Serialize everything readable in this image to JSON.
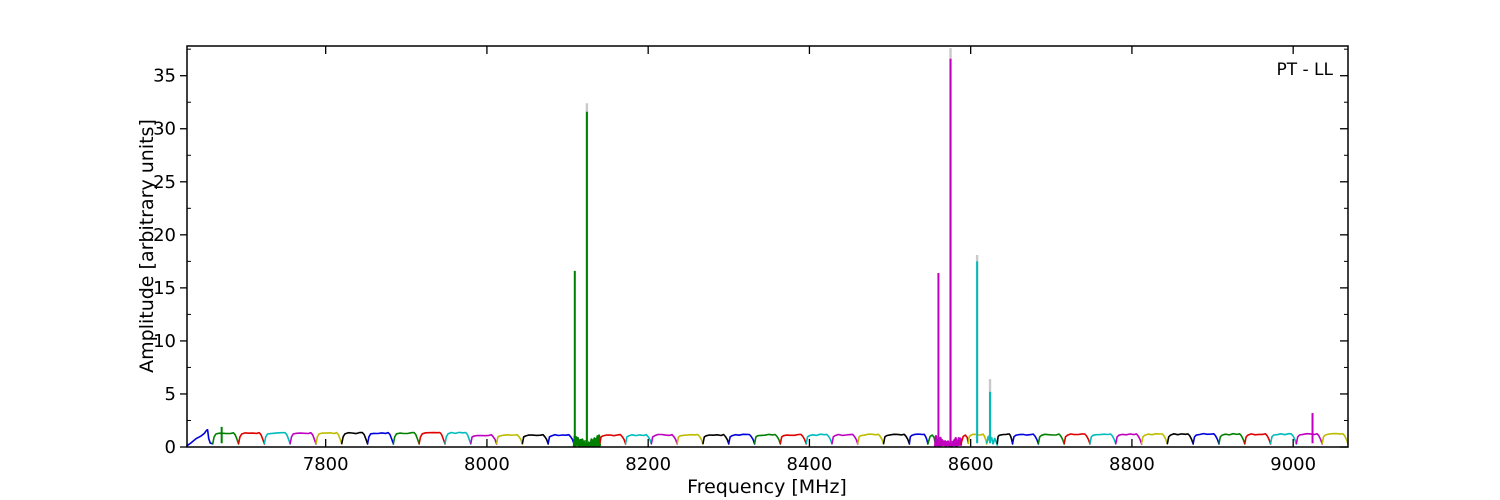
{
  "figure": {
    "annotation": "PT - LL",
    "xlabel": "Frequency [MHz]",
    "ylabel": "Amplitude [arbitrary units]"
  },
  "chart_data": {
    "type": "line",
    "title": "PT - LL",
    "xlabel": "Frequency [MHz]",
    "ylabel": "Amplitude [arbitrary units]",
    "xlim": [
      7628,
      9068
    ],
    "ylim": [
      0,
      37.8
    ],
    "x_ticks": [
      7800,
      8000,
      8200,
      8400,
      8600,
      8800,
      9000
    ],
    "y_ticks": [
      0,
      5,
      10,
      15,
      20,
      25,
      30,
      35
    ],
    "y_minor_ticks": [
      2.5,
      7.5,
      12.5,
      17.5,
      22.5,
      27.5,
      32.5,
      37.5
    ],
    "grid": false,
    "legend": "none",
    "description": "Autocorrelation bandpass spectrum: 45 contiguous ~32 MHz subbands at amplitude ~1 with narrow RFI spikes; flagged subbands at 8108-8140 (green) and 8556-8588 (magenta) shown as dense scribble",
    "baseline_level": 1.3,
    "palette": {
      "b": "#0000dd",
      "g": "#008000",
      "r": "#e00000",
      "c": "#00bcbc",
      "m": "#bf00bf",
      "y": "#bdbd00",
      "k": "#000000",
      "gray": "#c9c9c9"
    },
    "segments": [
      {
        "f0": 7628,
        "f1": 7660,
        "color": "b",
        "shape": "ramp"
      },
      {
        "f0": 7660,
        "f1": 7692,
        "color": "g",
        "shape": "hump"
      },
      {
        "f0": 7692,
        "f1": 7724,
        "color": "r",
        "shape": "hump"
      },
      {
        "f0": 7724,
        "f1": 7756,
        "color": "c",
        "shape": "hump"
      },
      {
        "f0": 7756,
        "f1": 7788,
        "color": "m",
        "shape": "hump"
      },
      {
        "f0": 7788,
        "f1": 7820,
        "color": "y",
        "shape": "hump"
      },
      {
        "f0": 7820,
        "f1": 7852,
        "color": "k",
        "shape": "hump"
      },
      {
        "f0": 7852,
        "f1": 7884,
        "color": "b",
        "shape": "hump"
      },
      {
        "f0": 7884,
        "f1": 7916,
        "color": "g",
        "shape": "hump"
      },
      {
        "f0": 7916,
        "f1": 7948,
        "color": "r",
        "shape": "hump"
      },
      {
        "f0": 7948,
        "f1": 7980,
        "color": "c",
        "shape": "hump"
      },
      {
        "f0": 7980,
        "f1": 8012,
        "color": "m",
        "shape": "hump"
      },
      {
        "f0": 8012,
        "f1": 8044,
        "color": "y",
        "shape": "hump"
      },
      {
        "f0": 8044,
        "f1": 8076,
        "color": "k",
        "shape": "hump"
      },
      {
        "f0": 8076,
        "f1": 8108,
        "color": "b",
        "shape": "hump"
      },
      {
        "f0": 8108,
        "f1": 8140,
        "color": "g",
        "shape": "blob"
      },
      {
        "f0": 8140,
        "f1": 8172,
        "color": "r",
        "shape": "hump"
      },
      {
        "f0": 8172,
        "f1": 8204,
        "color": "c",
        "shape": "hump"
      },
      {
        "f0": 8204,
        "f1": 8236,
        "color": "m",
        "shape": "hump"
      },
      {
        "f0": 8236,
        "f1": 8268,
        "color": "y",
        "shape": "hump"
      },
      {
        "f0": 8268,
        "f1": 8300,
        "color": "k",
        "shape": "hump"
      },
      {
        "f0": 8300,
        "f1": 8332,
        "color": "b",
        "shape": "hump"
      },
      {
        "f0": 8332,
        "f1": 8364,
        "color": "g",
        "shape": "hump"
      },
      {
        "f0": 8364,
        "f1": 8396,
        "color": "r",
        "shape": "hump"
      },
      {
        "f0": 8396,
        "f1": 8428,
        "color": "c",
        "shape": "hump"
      },
      {
        "f0": 8428,
        "f1": 8460,
        "color": "m",
        "shape": "hump"
      },
      {
        "f0": 8460,
        "f1": 8492,
        "color": "y",
        "shape": "hump"
      },
      {
        "f0": 8492,
        "f1": 8524,
        "color": "k",
        "shape": "hump"
      },
      {
        "f0": 8524,
        "f1": 8547,
        "color": "b",
        "shape": "hump"
      },
      {
        "f0": 8547,
        "f1": 8556,
        "color": "g",
        "shape": "sliver"
      },
      {
        "f0": 8556,
        "f1": 8588,
        "color": "m",
        "shape": "blob"
      },
      {
        "f0": 8588,
        "f1": 8597,
        "color": "r",
        "shape": "sliver"
      },
      {
        "f0": 8597,
        "f1": 8620,
        "color": "y",
        "shape": "hump"
      },
      {
        "f0": 8620,
        "f1": 8633,
        "color": "c",
        "shape": "wiggle"
      },
      {
        "f0": 8633,
        "f1": 8652,
        "color": "k",
        "shape": "hump"
      },
      {
        "f0": 8652,
        "f1": 8684,
        "color": "b",
        "shape": "hump"
      },
      {
        "f0": 8684,
        "f1": 8716,
        "color": "g",
        "shape": "hump"
      },
      {
        "f0": 8716,
        "f1": 8748,
        "color": "r",
        "shape": "hump"
      },
      {
        "f0": 8748,
        "f1": 8780,
        "color": "c",
        "shape": "hump"
      },
      {
        "f0": 8780,
        "f1": 8812,
        "color": "m",
        "shape": "hump"
      },
      {
        "f0": 8812,
        "f1": 8844,
        "color": "y",
        "shape": "hump"
      },
      {
        "f0": 8844,
        "f1": 8876,
        "color": "k",
        "shape": "hump"
      },
      {
        "f0": 8876,
        "f1": 8908,
        "color": "b",
        "shape": "hump"
      },
      {
        "f0": 8908,
        "f1": 8940,
        "color": "g",
        "shape": "hump"
      },
      {
        "f0": 8940,
        "f1": 8972,
        "color": "r",
        "shape": "hump"
      },
      {
        "f0": 8972,
        "f1": 9004,
        "color": "c",
        "shape": "hump"
      },
      {
        "f0": 9004,
        "f1": 9036,
        "color": "m",
        "shape": "hump"
      },
      {
        "f0": 9036,
        "f1": 9068,
        "color": "y",
        "shape": "hump"
      }
    ],
    "spikes": [
      {
        "freq": 7671,
        "amp": 1.9,
        "color": "g"
      },
      {
        "freq": 8109,
        "amp": 16.6,
        "color": "g"
      },
      {
        "freq": 8124,
        "amp": 31.6,
        "color": "g",
        "gray_tip": 32.4
      },
      {
        "freq": 8560,
        "amp": 16.4,
        "color": "m"
      },
      {
        "freq": 8575,
        "amp": 36.6,
        "color": "m",
        "gray_tip": 37.6
      },
      {
        "freq": 8608,
        "amp": 17.5,
        "color": "c",
        "gray_tip": 18.1
      },
      {
        "freq": 8624,
        "amp": 5.2,
        "color": "c",
        "gray_tip": 6.4
      },
      {
        "freq": 9024,
        "amp": 3.2,
        "color": "m"
      }
    ]
  }
}
